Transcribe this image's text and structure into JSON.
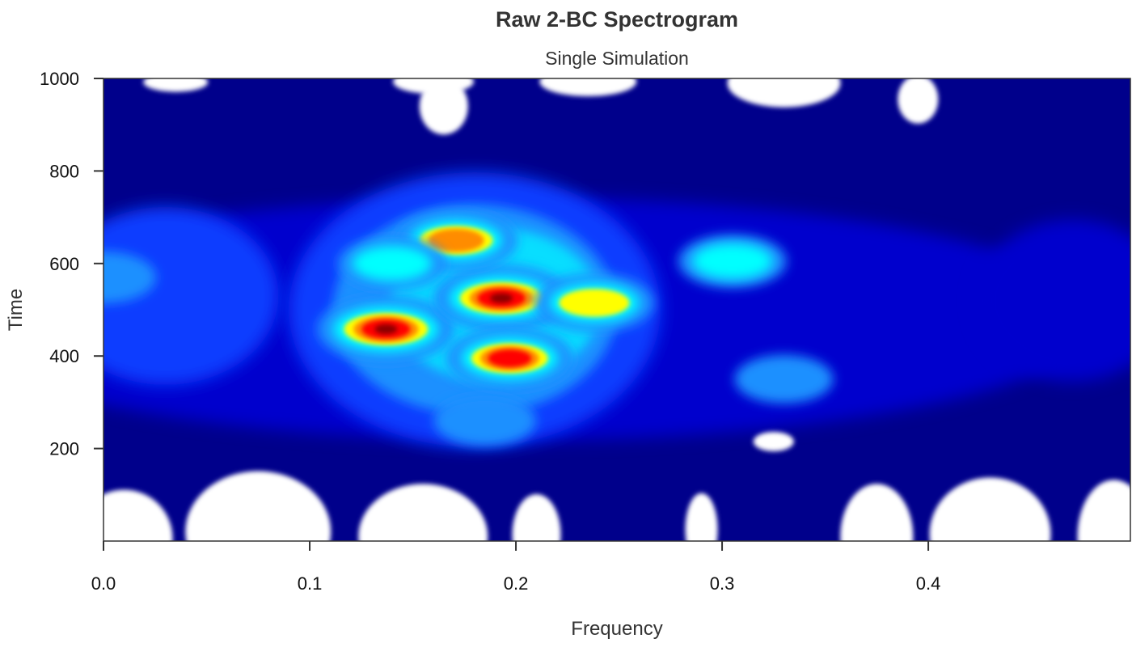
{
  "chart_data": {
    "type": "heatmap",
    "title": "Raw 2-BC Spectrogram",
    "subtitle": "Single Simulation",
    "xlabel": "Frequency",
    "ylabel": "Time",
    "xlim": [
      0.0,
      0.498
    ],
    "ylim": [
      0,
      1000
    ],
    "x_ticks": [
      0.0,
      0.1,
      0.2,
      0.3,
      0.4
    ],
    "x_tick_labels": [
      "0.0",
      "0.1",
      "0.2",
      "0.3",
      "0.4"
    ],
    "y_ticks": [
      200,
      400,
      600,
      800,
      1000
    ],
    "y_tick_labels": [
      "200",
      "400",
      "600",
      "800",
      "1000"
    ],
    "grid": false,
    "legend": "none",
    "colormap": [
      "#ffffff",
      "#00008b",
      "#0000cd",
      "#0a3cff",
      "#1e90ff",
      "#00ffff",
      "#ffff00",
      "#ff8c00",
      "#ff0000",
      "#8b0000"
    ],
    "hotspots": [
      {
        "freq": 0.137,
        "time": 458,
        "intensity": 1.0
      },
      {
        "freq": 0.193,
        "time": 525,
        "intensity": 0.98
      },
      {
        "freq": 0.197,
        "time": 395,
        "intensity": 0.85
      },
      {
        "freq": 0.171,
        "time": 650,
        "intensity": 0.78
      },
      {
        "freq": 0.238,
        "time": 515,
        "intensity": 0.72
      },
      {
        "freq": 0.305,
        "time": 605,
        "intensity": 0.55
      },
      {
        "freq": 0.0,
        "time": 570,
        "intensity": 0.5
      },
      {
        "freq": 0.14,
        "time": 600,
        "intensity": 0.55
      },
      {
        "freq": 0.185,
        "time": 260,
        "intensity": 0.45
      },
      {
        "freq": 0.33,
        "time": 350,
        "intensity": 0.4
      }
    ]
  }
}
